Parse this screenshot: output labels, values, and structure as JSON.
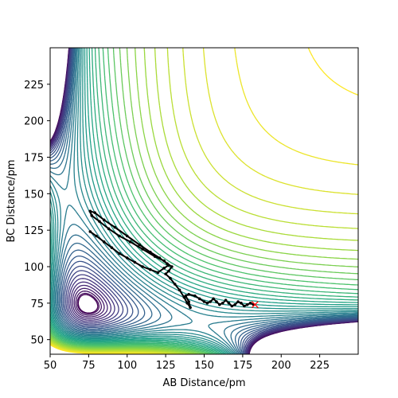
{
  "chart_data": {
    "type": "contour",
    "title": "",
    "xlabel": "AB Distance/pm",
    "ylabel": "BC Distance/pm",
    "xlim": [
      50,
      250
    ],
    "ylim": [
      40,
      250
    ],
    "xticks": [
      50,
      75,
      100,
      125,
      150,
      175,
      200,
      225
    ],
    "yticks": [
      50,
      75,
      100,
      125,
      150,
      175,
      200,
      225
    ],
    "grid": false,
    "legend": "none",
    "colormap": [
      "#440154",
      "#46327e",
      "#365c8d",
      "#277f8e",
      "#1fa187",
      "#4ac16d",
      "#a0da39",
      "#fde725"
    ],
    "contour_levels": 40,
    "surface": {
      "description_values": {
        "equilibrium_bond_pm": 74,
        "minimum_ridge_x_pm": 96,
        "saddle_region": [
          128,
          96
        ]
      }
    },
    "trajectory": {
      "color": "#000000",
      "marker": "dot",
      "points": [
        [
          76,
          124
        ],
        [
          80,
          121
        ],
        [
          85,
          117
        ],
        [
          90,
          113
        ],
        [
          95,
          109
        ],
        [
          100,
          106
        ],
        [
          105,
          103
        ],
        [
          110,
          100
        ],
        [
          115,
          98
        ],
        [
          120,
          96
        ],
        [
          124,
          99
        ],
        [
          127,
          101
        ],
        [
          124,
          104
        ],
        [
          118,
          107
        ],
        [
          110,
          112
        ],
        [
          102,
          117
        ],
        [
          95,
          121
        ],
        [
          88,
          126
        ],
        [
          82,
          131
        ],
        [
          77,
          135
        ],
        [
          76,
          138
        ],
        [
          79,
          137
        ],
        [
          85,
          132
        ],
        [
          92,
          127
        ],
        [
          100,
          121
        ],
        [
          108,
          115
        ],
        [
          115,
          110
        ],
        [
          121,
          106
        ],
        [
          126,
          102
        ],
        [
          129,
          100
        ],
        [
          127,
          97
        ],
        [
          125,
          95
        ],
        [
          128,
          92
        ],
        [
          131,
          88
        ],
        [
          134,
          84
        ],
        [
          137,
          79
        ],
        [
          139,
          75
        ],
        [
          141,
          72
        ],
        [
          140,
          76
        ],
        [
          138,
          80
        ],
        [
          140,
          81
        ],
        [
          144,
          80
        ],
        [
          147,
          78
        ],
        [
          150,
          76
        ],
        [
          152,
          75
        ],
        [
          154,
          76
        ],
        [
          156,
          78
        ],
        [
          158,
          76
        ],
        [
          160,
          74
        ],
        [
          162,
          75
        ],
        [
          164,
          77
        ],
        [
          166,
          75
        ],
        [
          168,
          73
        ],
        [
          170,
          74
        ],
        [
          172,
          76
        ],
        [
          174,
          75
        ],
        [
          176,
          73
        ],
        [
          178,
          74
        ],
        [
          180,
          75
        ],
        [
          182,
          74
        ]
      ]
    },
    "end_marker": {
      "x": 183,
      "y": 74,
      "symbol": "x",
      "color": "#ff0000"
    }
  }
}
